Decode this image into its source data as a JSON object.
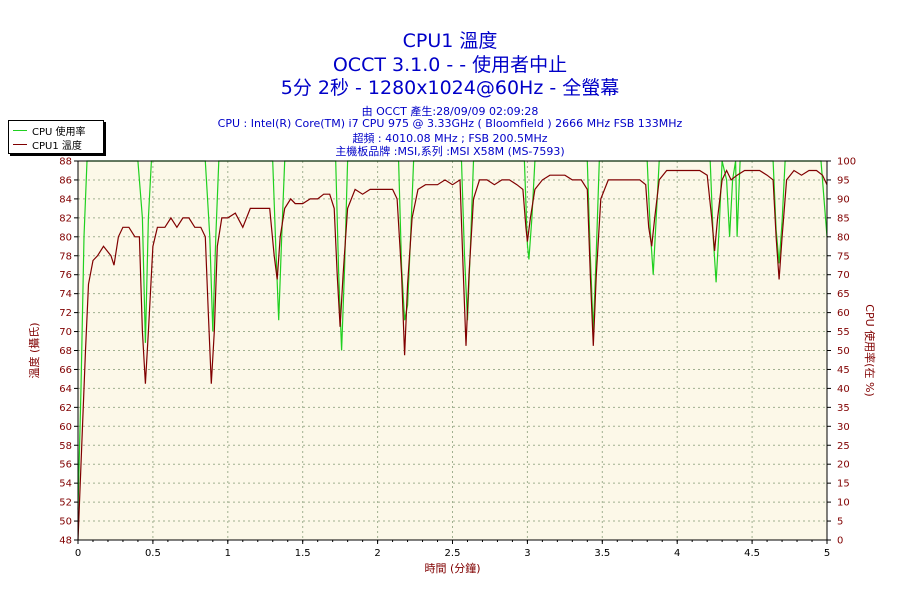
{
  "titles": {
    "line1": "CPU1 溫度",
    "line2": "OCCT 3.1.0 -  - 使用者中止",
    "line3": "5分 2秒 - 1280x1024@60Hz - 全螢幕"
  },
  "info": {
    "line1": "由 OCCT 產生:28/09/09 02:09:28",
    "line2": "CPU : Intel(R) Core(TM) i7 CPU 975 @ 3.33GHz ( Bloomfield ) 2666 MHz FSB 133MHz",
    "line3": "超頻 : 4010.08 MHz ; FSB 200.5MHz",
    "line4": "主機板品牌 :MSI,系列 :MSI X58M (MS-7593)"
  },
  "colors": {
    "plot_bg": "#fcf8e8",
    "grid": "#a0b090",
    "cpu_usage": "#20d020",
    "cpu_temp": "#800000",
    "axis_text_left": "#800000",
    "axis_text_bottom": "#800000"
  },
  "chart_data": {
    "type": "line",
    "xlabel": "時間 (分鐘)",
    "ylabel_left": "溫度 (攝氏)",
    "ylabel_right": "CPU 使用率(在 %)",
    "xlim": [
      0,
      5
    ],
    "ylim_left": [
      48,
      88
    ],
    "ylim_right": [
      0,
      100
    ],
    "x_ticks": [
      "0",
      "0.5",
      "1",
      "1.5",
      "2",
      "2.5",
      "3",
      "3.5",
      "4",
      "4.5",
      "5"
    ],
    "y_ticks_left": [
      "48",
      "50",
      "52",
      "54",
      "56",
      "58",
      "60",
      "62",
      "64",
      "66",
      "68",
      "70",
      "72",
      "74",
      "76",
      "78",
      "80",
      "82",
      "84",
      "86",
      "88"
    ],
    "y_ticks_right": [
      "0",
      "5",
      "10",
      "15",
      "20",
      "25",
      "30",
      "35",
      "40",
      "45",
      "50",
      "55",
      "60",
      "65",
      "70",
      "75",
      "80",
      "85",
      "90",
      "95",
      "100"
    ],
    "grid": true,
    "legend_position": "top-left-outside",
    "series": [
      {
        "name": "CPU 使用率",
        "axis": "right",
        "points": [
          [
            0,
            8
          ],
          [
            0.02,
            40
          ],
          [
            0.04,
            80
          ],
          [
            0.06,
            100
          ],
          [
            0.4,
            100
          ],
          [
            0.43,
            85
          ],
          [
            0.45,
            52
          ],
          [
            0.47,
            85
          ],
          [
            0.49,
            100
          ],
          [
            0.85,
            100
          ],
          [
            0.88,
            80
          ],
          [
            0.9,
            55
          ],
          [
            0.92,
            80
          ],
          [
            0.94,
            100
          ],
          [
            1.3,
            100
          ],
          [
            1.32,
            78
          ],
          [
            1.34,
            58
          ],
          [
            1.36,
            80
          ],
          [
            1.38,
            100
          ],
          [
            1.72,
            100
          ],
          [
            1.74,
            70
          ],
          [
            1.76,
            50
          ],
          [
            1.78,
            72
          ],
          [
            1.8,
            100
          ],
          [
            2.14,
            100
          ],
          [
            2.16,
            72
          ],
          [
            2.18,
            58
          ],
          [
            2.2,
            62
          ],
          [
            2.22,
            80
          ],
          [
            2.24,
            100
          ],
          [
            2.56,
            100
          ],
          [
            2.58,
            75
          ],
          [
            2.6,
            58
          ],
          [
            2.62,
            78
          ],
          [
            2.64,
            100
          ],
          [
            2.98,
            100
          ],
          [
            3.0,
            78
          ],
          [
            3.01,
            74
          ],
          [
            3.03,
            85
          ],
          [
            3.05,
            100
          ],
          [
            3.4,
            100
          ],
          [
            3.42,
            75
          ],
          [
            3.44,
            55
          ],
          [
            3.46,
            76
          ],
          [
            3.48,
            100
          ],
          [
            3.8,
            100
          ],
          [
            3.82,
            82
          ],
          [
            3.84,
            70
          ],
          [
            3.86,
            85
          ],
          [
            3.88,
            100
          ],
          [
            4.22,
            100
          ],
          [
            4.24,
            80
          ],
          [
            4.26,
            68
          ],
          [
            4.28,
            82
          ],
          [
            4.3,
            100
          ],
          [
            4.33,
            95
          ],
          [
            4.35,
            80
          ],
          [
            4.37,
            95
          ],
          [
            4.39,
            100
          ],
          [
            4.4,
            80
          ],
          [
            4.42,
            100
          ],
          [
            4.64,
            100
          ],
          [
            4.66,
            82
          ],
          [
            4.68,
            73
          ],
          [
            4.7,
            84
          ],
          [
            4.72,
            100
          ],
          [
            4.96,
            100
          ],
          [
            4.98,
            90
          ],
          [
            5.0,
            80
          ]
        ]
      },
      {
        "name": "CPU1 溫度",
        "axis": "left",
        "points": [
          [
            0,
            48
          ],
          [
            0.01,
            52
          ],
          [
            0.03,
            60
          ],
          [
            0.05,
            68
          ],
          [
            0.07,
            75
          ],
          [
            0.1,
            77.5
          ],
          [
            0.13,
            78
          ],
          [
            0.17,
            79
          ],
          [
            0.22,
            78
          ],
          [
            0.24,
            77
          ],
          [
            0.27,
            80
          ],
          [
            0.3,
            81
          ],
          [
            0.34,
            81
          ],
          [
            0.38,
            80
          ],
          [
            0.41,
            80
          ],
          [
            0.43,
            70
          ],
          [
            0.45,
            64.5
          ],
          [
            0.47,
            70
          ],
          [
            0.5,
            79
          ],
          [
            0.53,
            81
          ],
          [
            0.58,
            81
          ],
          [
            0.62,
            82
          ],
          [
            0.66,
            81
          ],
          [
            0.7,
            82
          ],
          [
            0.74,
            82
          ],
          [
            0.78,
            81
          ],
          [
            0.82,
            81
          ],
          [
            0.85,
            80
          ],
          [
            0.87,
            72
          ],
          [
            0.89,
            64.5
          ],
          [
            0.91,
            70
          ],
          [
            0.93,
            79
          ],
          [
            0.96,
            82
          ],
          [
            1.0,
            82
          ],
          [
            1.05,
            82.5
          ],
          [
            1.1,
            81
          ],
          [
            1.15,
            83
          ],
          [
            1.2,
            83
          ],
          [
            1.24,
            83
          ],
          [
            1.28,
            83
          ],
          [
            1.31,
            78
          ],
          [
            1.33,
            75.5
          ],
          [
            1.35,
            80
          ],
          [
            1.38,
            83
          ],
          [
            1.42,
            84
          ],
          [
            1.45,
            83.5
          ],
          [
            1.5,
            83.5
          ],
          [
            1.55,
            84
          ],
          [
            1.6,
            84
          ],
          [
            1.64,
            84.5
          ],
          [
            1.68,
            84.5
          ],
          [
            1.71,
            83
          ],
          [
            1.73,
            76
          ],
          [
            1.75,
            70.5
          ],
          [
            1.77,
            76
          ],
          [
            1.8,
            83
          ],
          [
            1.85,
            85
          ],
          [
            1.9,
            84.5
          ],
          [
            1.95,
            85
          ],
          [
            2.0,
            85
          ],
          [
            2.05,
            85
          ],
          [
            2.1,
            85
          ],
          [
            2.13,
            84
          ],
          [
            2.16,
            76
          ],
          [
            2.18,
            67.5
          ],
          [
            2.2,
            75
          ],
          [
            2.23,
            82
          ],
          [
            2.27,
            85
          ],
          [
            2.32,
            85.5
          ],
          [
            2.36,
            85.5
          ],
          [
            2.4,
            85.5
          ],
          [
            2.45,
            86
          ],
          [
            2.5,
            85.5
          ],
          [
            2.55,
            86
          ],
          [
            2.57,
            77
          ],
          [
            2.59,
            68.5
          ],
          [
            2.61,
            76
          ],
          [
            2.64,
            84
          ],
          [
            2.68,
            86
          ],
          [
            2.73,
            86
          ],
          [
            2.78,
            85.5
          ],
          [
            2.83,
            86
          ],
          [
            2.88,
            86
          ],
          [
            2.93,
            85.5
          ],
          [
            2.97,
            85
          ],
          [
            2.99,
            81
          ],
          [
            3.0,
            79.5
          ],
          [
            3.02,
            82
          ],
          [
            3.05,
            85
          ],
          [
            3.1,
            86
          ],
          [
            3.15,
            86.5
          ],
          [
            3.2,
            86.5
          ],
          [
            3.25,
            86.5
          ],
          [
            3.3,
            86
          ],
          [
            3.36,
            86
          ],
          [
            3.4,
            85
          ],
          [
            3.42,
            76
          ],
          [
            3.44,
            68.5
          ],
          [
            3.46,
            76
          ],
          [
            3.49,
            84
          ],
          [
            3.54,
            86
          ],
          [
            3.6,
            86
          ],
          [
            3.65,
            86
          ],
          [
            3.7,
            86
          ],
          [
            3.75,
            86
          ],
          [
            3.79,
            85.5
          ],
          [
            3.81,
            81
          ],
          [
            3.83,
            79
          ],
          [
            3.85,
            82
          ],
          [
            3.88,
            86
          ],
          [
            3.93,
            87
          ],
          [
            4.0,
            87
          ],
          [
            4.05,
            87
          ],
          [
            4.1,
            87
          ],
          [
            4.15,
            87
          ],
          [
            4.2,
            86.5
          ],
          [
            4.23,
            82
          ],
          [
            4.25,
            78.5
          ],
          [
            4.27,
            82
          ],
          [
            4.3,
            86
          ],
          [
            4.33,
            87
          ],
          [
            4.36,
            86
          ],
          [
            4.4,
            86.5
          ],
          [
            4.45,
            87
          ],
          [
            4.5,
            87
          ],
          [
            4.55,
            87
          ],
          [
            4.6,
            86.5
          ],
          [
            4.64,
            86
          ],
          [
            4.66,
            80
          ],
          [
            4.68,
            75.5
          ],
          [
            4.7,
            80
          ],
          [
            4.73,
            86
          ],
          [
            4.78,
            87
          ],
          [
            4.83,
            86.5
          ],
          [
            4.88,
            87
          ],
          [
            4.93,
            87
          ],
          [
            4.97,
            86.5
          ],
          [
            5.0,
            85.5
          ]
        ]
      }
    ]
  }
}
